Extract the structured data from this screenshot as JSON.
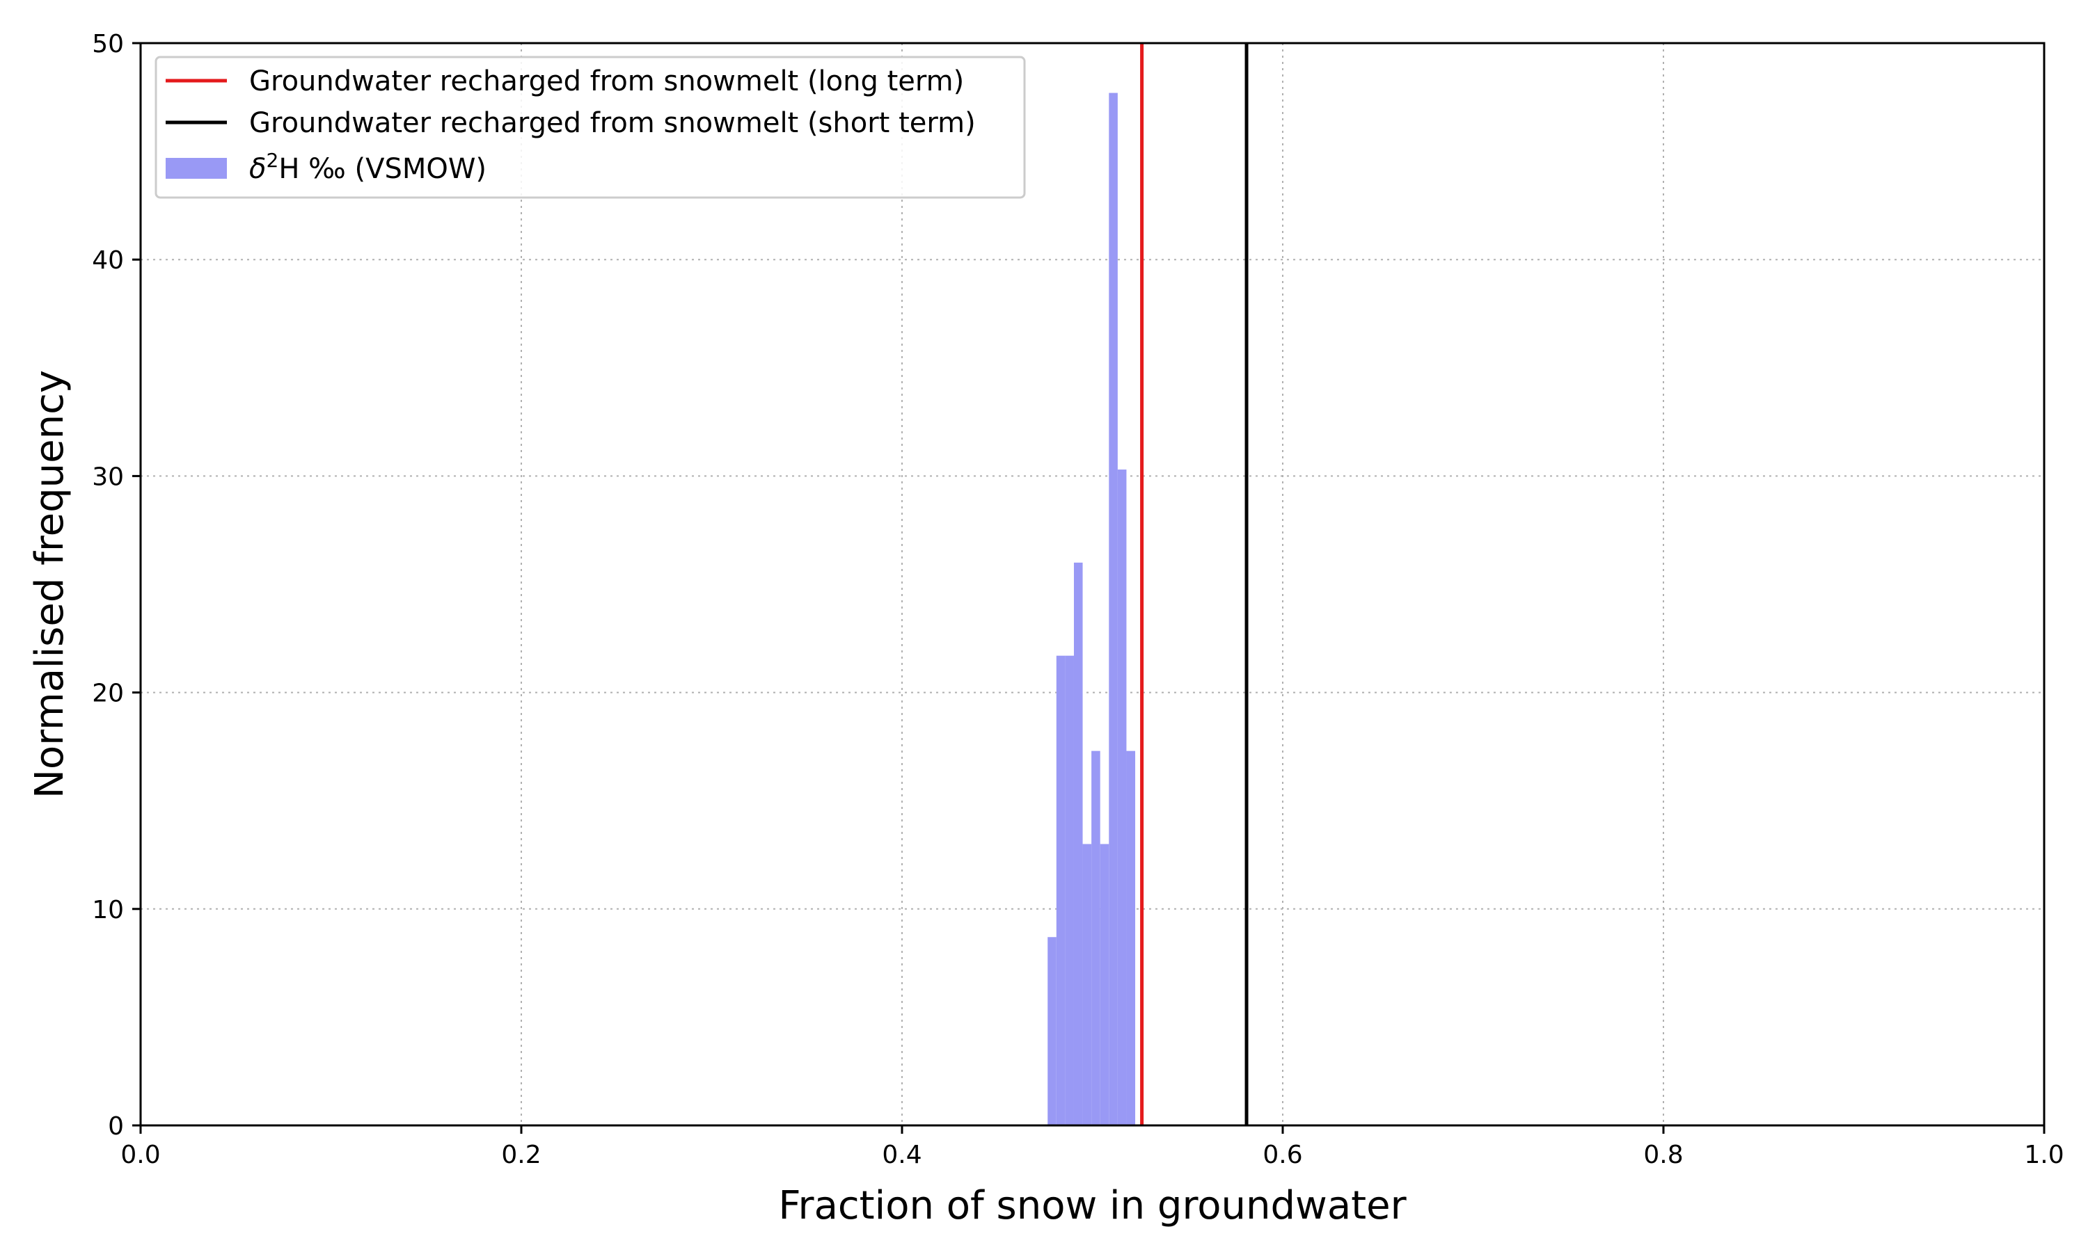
{
  "chart_data": {
    "type": "bar",
    "title": "",
    "xlabel": "Fraction of snow in groundwater",
    "ylabel": "Normalised frequency",
    "xlim": [
      0.0,
      1.0
    ],
    "ylim": [
      0,
      50
    ],
    "xticks": [
      "0.0",
      "0.2",
      "0.4",
      "0.6",
      "0.8",
      "1.0"
    ],
    "yticks": [
      "0",
      "10",
      "20",
      "30",
      "40",
      "50"
    ],
    "grid": true,
    "legend_position": "top-left",
    "histogram": {
      "name": "δ2H ‰ (VSMOW)",
      "color": "#9999f5",
      "bins": [
        {
          "x0": 0.4765,
          "x1": 0.4811,
          "value": 8.7
        },
        {
          "x0": 0.4811,
          "x1": 0.4857,
          "value": 21.7
        },
        {
          "x0": 0.4857,
          "x1": 0.4903,
          "value": 21.7
        },
        {
          "x0": 0.4903,
          "x1": 0.4949,
          "value": 26.0
        },
        {
          "x0": 0.4949,
          "x1": 0.4995,
          "value": 13.0
        },
        {
          "x0": 0.4995,
          "x1": 0.5041,
          "value": 17.3
        },
        {
          "x0": 0.5041,
          "x1": 0.5087,
          "value": 13.0
        },
        {
          "x0": 0.5087,
          "x1": 0.5133,
          "value": 47.7
        },
        {
          "x0": 0.5133,
          "x1": 0.5179,
          "value": 30.3
        },
        {
          "x0": 0.5179,
          "x1": 0.5225,
          "value": 17.3
        }
      ]
    },
    "vlines": [
      {
        "name": "Groundwater recharged from snowmelt (long term)",
        "x": 0.526,
        "color": "#e41a1c"
      },
      {
        "name": "Groundwater recharged from snowmelt (short term)",
        "x": 0.581,
        "color": "#000000"
      }
    ],
    "legend": [
      {
        "label": "Groundwater recharged from snowmelt (long term)",
        "kind": "line",
        "color": "#e41a1c"
      },
      {
        "label": "Groundwater recharged from snowmelt (short term)",
        "kind": "line",
        "color": "#000000"
      },
      {
        "label_base": "δ",
        "label_sup": "2",
        "label_rest": "H ‰ (VSMOW)",
        "kind": "patch",
        "color": "#9999f5"
      }
    ]
  }
}
